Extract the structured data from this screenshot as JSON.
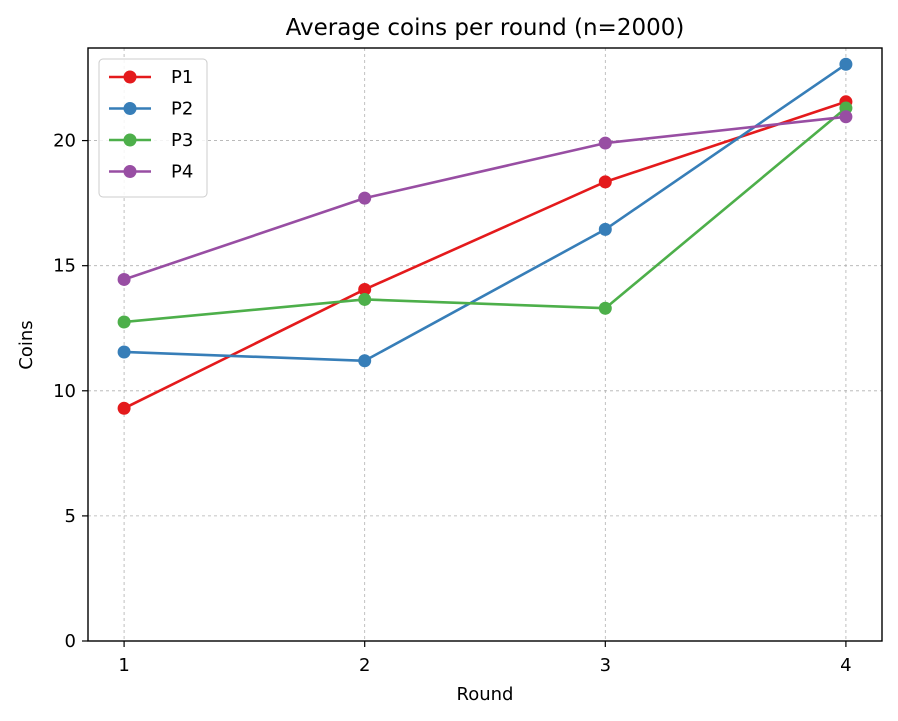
{
  "chart_data": {
    "type": "line",
    "title": "Average coins per round (n=2000)",
    "xlabel": "Round",
    "ylabel": "Coins",
    "x": [
      1,
      2,
      3,
      4
    ],
    "x_tick_labels": [
      "1",
      "2",
      "3",
      "4"
    ],
    "xlim": [
      0.85,
      4.15
    ],
    "ylim": [
      0,
      23.7
    ],
    "y_ticks": [
      0,
      5,
      10,
      15,
      20
    ],
    "grid": true,
    "legend_position": "top-left",
    "series": [
      {
        "name": "P1",
        "color": "#e41a1c",
        "values": [
          9.3,
          14.05,
          18.35,
          21.55
        ]
      },
      {
        "name": "P2",
        "color": "#377eb8",
        "values": [
          11.55,
          11.2,
          16.45,
          23.05
        ]
      },
      {
        "name": "P3",
        "color": "#4daf4a",
        "values": [
          12.75,
          13.65,
          13.3,
          21.3
        ]
      },
      {
        "name": "P4",
        "color": "#984ea3",
        "values": [
          14.45,
          17.7,
          19.9,
          20.95
        ]
      }
    ]
  }
}
